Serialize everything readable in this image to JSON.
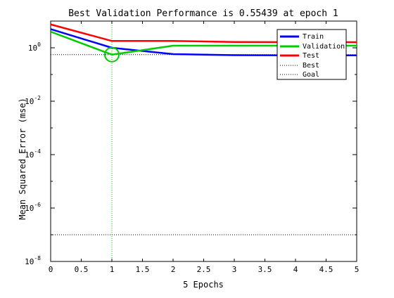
{
  "chart_data": {
    "type": "line",
    "title": "Best Validation Performance is 0.55439 at epoch 1",
    "xlabel": "5 Epochs",
    "ylabel": "Mean Squared Error  (mse)",
    "xlim": [
      0,
      5
    ],
    "ylim": [
      1e-08,
      10
    ],
    "yscale": "log",
    "x_ticks": [
      "0",
      "0.5",
      "1",
      "1.5",
      "2",
      "2.5",
      "3",
      "3.5",
      "4",
      "4.5",
      "5"
    ],
    "y_ticks": [
      {
        "base": "10",
        "exp": "0"
      },
      {
        "base": "10",
        "exp": "-2"
      },
      {
        "base": "10",
        "exp": "-4"
      },
      {
        "base": "10",
        "exp": "-6"
      },
      {
        "base": "10",
        "exp": "-8"
      }
    ],
    "grid": false,
    "legend_position": "top-right",
    "x": [
      0,
      1,
      2,
      3,
      4,
      5
    ],
    "series": [
      {
        "name": "Train",
        "color": "#0000ff",
        "values": [
          5.0,
          1.0,
          0.58,
          0.53,
          0.52,
          0.52
        ]
      },
      {
        "name": "Validation",
        "color": "#00cc00",
        "values": [
          4.0,
          0.55439,
          1.2,
          1.2,
          1.2,
          1.2
        ]
      },
      {
        "name": "Test",
        "color": "#ff0000",
        "values": [
          7.5,
          1.8,
          1.8,
          1.65,
          1.62,
          1.62
        ]
      }
    ],
    "best": {
      "name": "Best",
      "value": 0.55439,
      "epoch": 1,
      "color": "#00cc00"
    },
    "goal": {
      "name": "Goal",
      "value": 1e-07
    }
  }
}
